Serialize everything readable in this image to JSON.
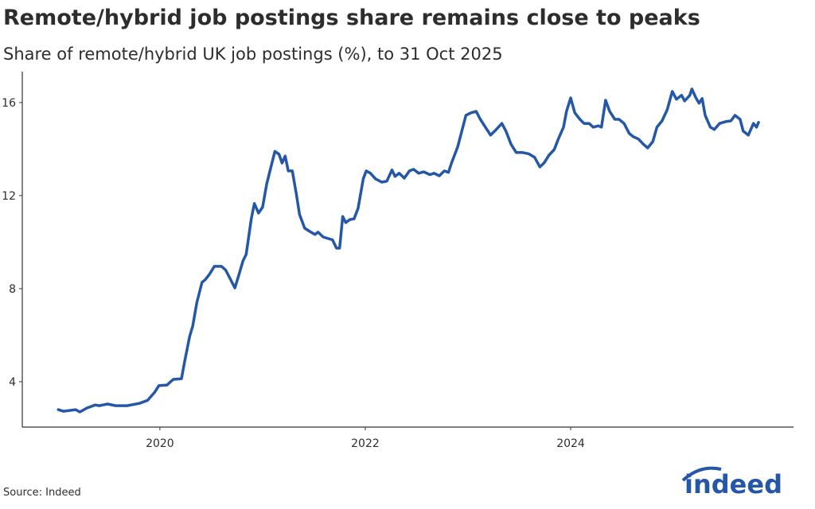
{
  "chart_data": {
    "type": "line",
    "title": "Remote/hybrid job postings share remains close to peaks",
    "subtitle": "Share of remote/hybrid UK job postings (%), to 31 Oct 2025",
    "source": "Source: Indeed",
    "logo": "indeed",
    "color": "#2557a7",
    "x": [
      2019.01,
      2019.06,
      2019.18,
      2019.22,
      2019.29,
      2019.37,
      2019.41,
      2019.49,
      2019.57,
      2019.68,
      2019.8,
      2019.88,
      2019.95,
      2019.99,
      2020.07,
      2020.13,
      2020.21,
      2020.24,
      2020.29,
      2020.32,
      2020.36,
      2020.41,
      2020.44,
      2020.48,
      2020.53,
      2020.6,
      2020.64,
      2020.69,
      2020.73,
      2020.77,
      2020.81,
      2020.84,
      2020.89,
      2020.92,
      2020.96,
      2021.0,
      2021.04,
      2021.08,
      2021.12,
      2021.16,
      2021.19,
      2021.22,
      2021.25,
      2021.29,
      2021.33,
      2021.36,
      2021.41,
      2021.47,
      2021.51,
      2021.54,
      2021.59,
      2021.64,
      2021.68,
      2021.72,
      2021.75,
      2021.78,
      2021.81,
      2021.85,
      2021.89,
      2021.93,
      2021.98,
      2022.01,
      2022.05,
      2022.1,
      2022.16,
      2022.21,
      2022.26,
      2022.29,
      2022.33,
      2022.38,
      2022.43,
      2022.47,
      2022.52,
      2022.57,
      2022.63,
      2022.67,
      2022.72,
      2022.77,
      2022.81,
      2022.84,
      2022.9,
      2022.94,
      2022.98,
      2023.03,
      2023.08,
      2023.12,
      2023.17,
      2023.22,
      2023.26,
      2023.33,
      2023.37,
      2023.42,
      2023.47,
      2023.53,
      2023.59,
      2023.65,
      2023.7,
      2023.74,
      2023.79,
      2023.84,
      2023.88,
      2023.93,
      2023.96,
      2024.0,
      2024.04,
      2024.09,
      2024.13,
      2024.18,
      2024.22,
      2024.27,
      2024.3,
      2024.34,
      2024.38,
      2024.43,
      2024.47,
      2024.52,
      2024.57,
      2024.61,
      2024.66,
      2024.71,
      2024.75,
      2024.8,
      2024.84,
      2024.89,
      2024.94,
      2024.99,
      2025.03,
      2025.08,
      2025.11,
      2025.16,
      2025.18,
      2025.22,
      2025.25,
      2025.28,
      2025.31,
      2025.36,
      2025.4,
      2025.45,
      2025.51,
      2025.56,
      2025.6,
      2025.65,
      2025.68,
      2025.73,
      2025.78,
      2025.81,
      2025.83
    ],
    "values": [
      2.8,
      2.73,
      2.8,
      2.7,
      2.87,
      3.0,
      2.97,
      3.04,
      2.97,
      2.97,
      3.07,
      3.2,
      3.55,
      3.83,
      3.86,
      4.1,
      4.13,
      4.85,
      5.95,
      6.4,
      7.4,
      8.27,
      8.38,
      8.6,
      8.96,
      8.96,
      8.8,
      8.38,
      8.03,
      8.6,
      9.2,
      9.47,
      11.0,
      11.66,
      11.25,
      11.5,
      12.5,
      13.2,
      13.9,
      13.78,
      13.4,
      13.7,
      13.06,
      13.06,
      12.03,
      11.18,
      10.6,
      10.43,
      10.33,
      10.43,
      10.22,
      10.15,
      10.1,
      9.74,
      9.74,
      11.1,
      10.84,
      10.97,
      11.0,
      11.45,
      12.72,
      13.06,
      12.96,
      12.72,
      12.58,
      12.62,
      13.1,
      12.82,
      12.96,
      12.75,
      13.06,
      13.13,
      12.96,
      13.02,
      12.9,
      12.96,
      12.85,
      13.06,
      13.0,
      13.4,
      14.1,
      14.77,
      15.45,
      15.56,
      15.62,
      15.28,
      14.94,
      14.6,
      14.77,
      15.1,
      14.77,
      14.2,
      13.85,
      13.85,
      13.8,
      13.64,
      13.23,
      13.4,
      13.74,
      13.98,
      14.43,
      14.94,
      15.62,
      16.2,
      15.56,
      15.28,
      15.1,
      15.1,
      14.94,
      15.0,
      14.94,
      16.1,
      15.62,
      15.28,
      15.28,
      15.1,
      14.67,
      14.53,
      14.43,
      14.2,
      14.05,
      14.32,
      14.94,
      15.21,
      15.69,
      16.48,
      16.14,
      16.31,
      16.07,
      16.31,
      16.58,
      16.2,
      15.97,
      16.17,
      15.45,
      14.94,
      14.84,
      15.1,
      15.18,
      15.21,
      15.45,
      15.28,
      14.77,
      14.6,
      15.1,
      14.94,
      15.15
    ],
    "xlim": [
      2018.66,
      2026.17
    ],
    "xticks": [
      2020,
      2022,
      2024
    ],
    "ylim": [
      2.05,
      17.33
    ],
    "yticks": [
      4,
      8,
      12,
      16
    ]
  }
}
